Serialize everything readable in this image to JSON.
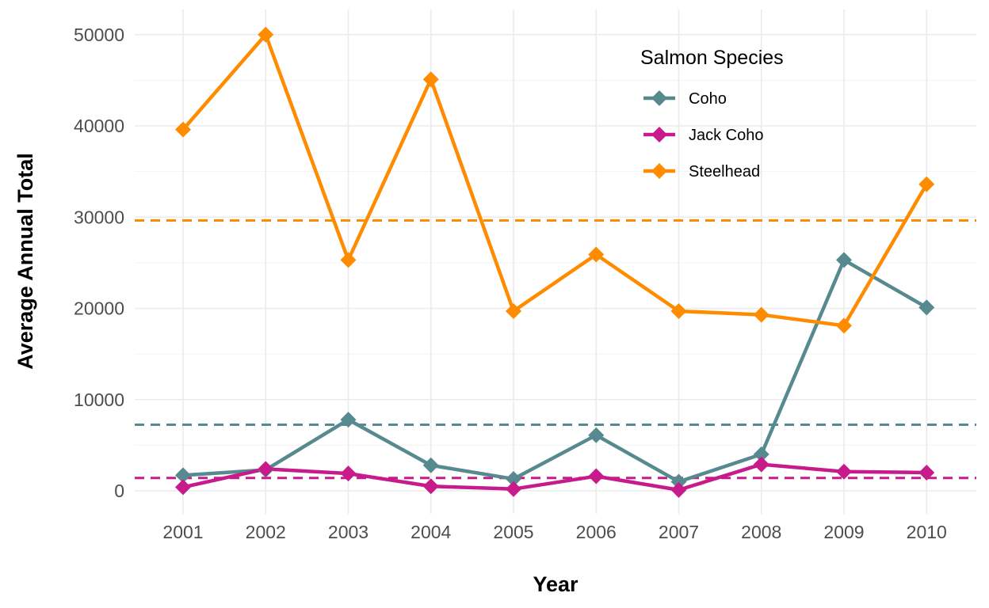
{
  "chart_data": {
    "type": "line",
    "title": "",
    "xlabel": "Year",
    "ylabel": "Average Annual Total",
    "x": [
      2001,
      2002,
      2003,
      2004,
      2005,
      2006,
      2007,
      2008,
      2009,
      2010
    ],
    "x_tick_labels": [
      "2001",
      "2002",
      "2003",
      "2004",
      "2005",
      "2006",
      "2007",
      "2008",
      "2009",
      "2010"
    ],
    "ylim": [
      -2000,
      52500
    ],
    "y_ticks": [
      0,
      10000,
      20000,
      30000,
      40000,
      50000
    ],
    "y_tick_labels": [
      "0",
      "10000",
      "20000",
      "30000",
      "40000",
      "50000"
    ],
    "grid": true,
    "legend": {
      "title": "Salmon Species",
      "placement": "top-right"
    },
    "series": [
      {
        "name": "Coho",
        "color": "#568a8f",
        "values": [
          1700,
          2300,
          7800,
          2800,
          1300,
          6100,
          1000,
          4000,
          25300,
          20100
        ],
        "mean": 7240
      },
      {
        "name": "Jack Coho",
        "color": "#c71b8c",
        "values": [
          400,
          2400,
          1900,
          500,
          200,
          1600,
          100,
          2900,
          2100,
          2000
        ],
        "mean": 1410
      },
      {
        "name": "Steelhead",
        "color": "#ff8c00",
        "values": [
          39600,
          50000,
          25300,
          45100,
          19700,
          25900,
          19700,
          19300,
          18100,
          33600
        ],
        "mean": 29630
      }
    ]
  }
}
